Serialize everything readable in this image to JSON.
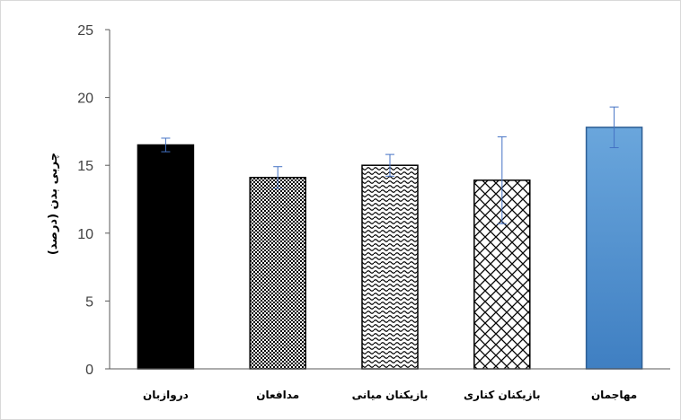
{
  "chart_data": {
    "type": "bar",
    "categories": [
      "دروازبان",
      "مدافعان",
      "بازیکنان میانی",
      "بازیکنان کناری",
      "مهاجمان"
    ],
    "values": [
      16.5,
      14.1,
      15.0,
      13.9,
      17.8
    ],
    "error": [
      0.5,
      0.8,
      0.8,
      3.2,
      1.5
    ],
    "patterns": [
      "solid-black",
      "checker",
      "wave",
      "lattice",
      "blue-gradient"
    ],
    "ylabel": "چربی بدن (درصد)",
    "xlabel": "",
    "ylim": [
      0,
      25
    ],
    "yticks": [
      0,
      5,
      10,
      15,
      20,
      25
    ],
    "grid": false,
    "colors": {
      "bar_stroke": "#000000",
      "error_bar": "#4472c4",
      "blue_fill": "#5b9bd5",
      "axis": "#595959"
    }
  }
}
